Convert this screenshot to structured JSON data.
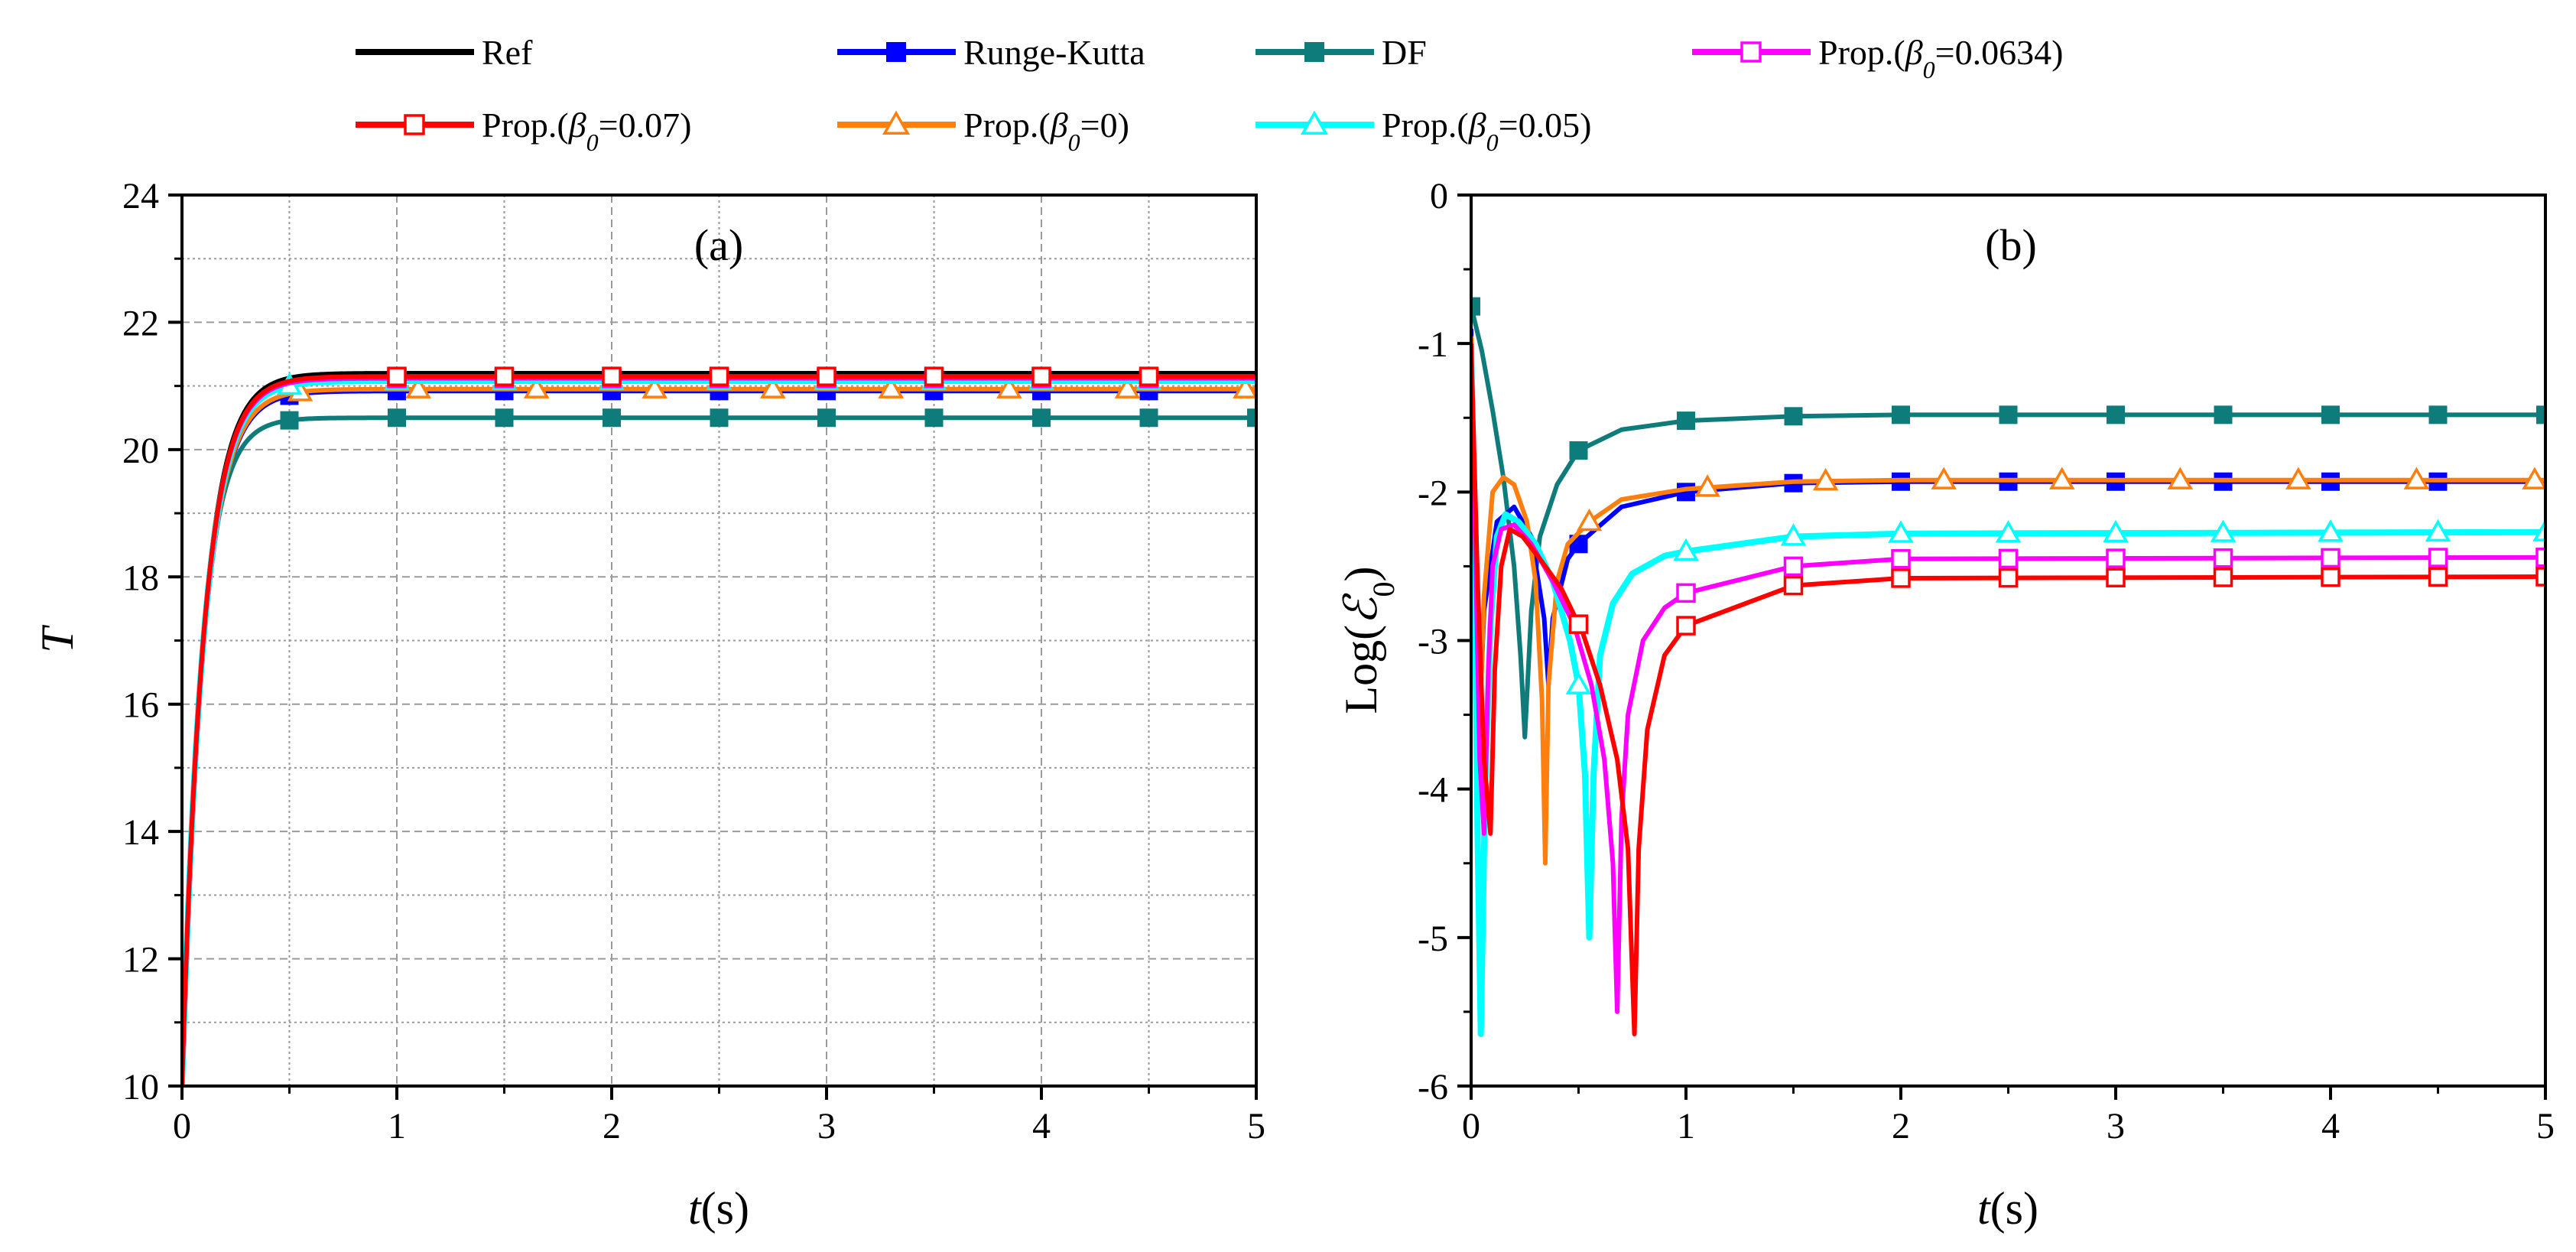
{
  "legend": [
    {
      "key": "ref",
      "label_pre": "Ref",
      "sym": "",
      "label_mid": "",
      "label_post": "",
      "color": "#000000",
      "marker": "none"
    },
    {
      "key": "rk",
      "label_pre": "Runge-Kutta",
      "sym": "",
      "label_mid": "",
      "label_post": "",
      "color": "#0000FF",
      "marker": "square-filled"
    },
    {
      "key": "df",
      "label_pre": "DF",
      "sym": "",
      "label_mid": "",
      "label_post": "",
      "color": "#0E7C7B",
      "marker": "square-filled"
    },
    {
      "key": "p0634",
      "label_pre": "Prop.(",
      "sym": "β",
      "label_mid": "0",
      "label_post": "=0.0634)",
      "color": "#FF00FF",
      "marker": "square-open"
    },
    {
      "key": "p07",
      "label_pre": "Prop.(",
      "sym": "β",
      "label_mid": "0",
      "label_post": "=0.07)",
      "color": "#FF0000",
      "marker": "square-open"
    },
    {
      "key": "p0",
      "label_pre": "Prop.(",
      "sym": "β",
      "label_mid": "0",
      "label_post": "=0)",
      "color": "#FF7F0E",
      "marker": "triangle-open"
    },
    {
      "key": "p05",
      "label_pre": "Prop.(",
      "sym": "β",
      "label_mid": "0",
      "label_post": "=0.05)",
      "color": "#00FFFF",
      "marker": "triangle-open"
    }
  ],
  "chart_data": [
    {
      "type": "line",
      "panel_label": "(a)",
      "xlabel_var": "t",
      "xlabel_unit": "(s)",
      "ylabel": "T",
      "xlim": [
        0,
        5
      ],
      "ylim": [
        10,
        24
      ],
      "xticks": [
        0,
        1,
        2,
        3,
        4,
        5
      ],
      "yticks": [
        10,
        12,
        14,
        16,
        18,
        20,
        22,
        24
      ],
      "grid": true,
      "model": "y = y_inf - (y_inf - 10) * exp(-t / tau)",
      "series": [
        {
          "key": "ref",
          "name": "Ref",
          "y_inf": 21.2,
          "tau": 0.1,
          "y0": 10,
          "markers_x": []
        },
        {
          "key": "rk",
          "name": "Runge-Kutta",
          "y_inf": 20.92,
          "tau": 0.1,
          "y0": 10,
          "markers_x": [
            0.5,
            1,
            1.5,
            2,
            2.5,
            3,
            3.5,
            4,
            4.5
          ]
        },
        {
          "key": "df",
          "name": "DF",
          "y_inf": 20.5,
          "tau": 0.09,
          "y0": 10,
          "markers_x": [
            0.5,
            1,
            1.5,
            2,
            2.5,
            3,
            3.5,
            4,
            4.5,
            5
          ]
        },
        {
          "key": "p0",
          "name": "Prop.(β0=0)",
          "y_inf": 20.95,
          "tau": 0.1,
          "y0": 10,
          "markers_x": [
            0.55,
            1.1,
            1.65,
            2.2,
            2.75,
            3.3,
            3.85,
            4.4,
            4.95
          ]
        },
        {
          "key": "p05",
          "name": "Prop.(β0=0.05)",
          "y_inf": 21.08,
          "tau": 0.1,
          "y0": 10,
          "markers_x": [
            0.5,
            1,
            1.5,
            2,
            2.5,
            3,
            3.5,
            4,
            4.5
          ]
        },
        {
          "key": "p0634",
          "name": "Prop.(β0=0.0634)",
          "y_inf": 21.12,
          "tau": 0.1,
          "y0": 10,
          "markers_x": [
            1,
            1.5,
            2,
            2.5,
            3,
            3.5,
            4,
            4.5
          ]
        },
        {
          "key": "p07",
          "name": "Prop.(β0=0.07)",
          "y_inf": 21.15,
          "tau": 0.1,
          "y0": 10,
          "markers_x": [
            1,
            1.5,
            2,
            2.5,
            3,
            3.5,
            4,
            4.5
          ]
        }
      ]
    },
    {
      "type": "line",
      "panel_label": "(b)",
      "xlabel_var": "t",
      "xlabel_unit": "(s)",
      "ylabel_pre": "Log",
      "ylabel_sym": "ℰ",
      "ylabel_sub": "0",
      "xlim": [
        0,
        5
      ],
      "ylim": [
        -6,
        0
      ],
      "xticks": [
        0,
        1,
        2,
        3,
        4,
        5
      ],
      "yticks": [
        -6,
        -5,
        -4,
        -3,
        -2,
        -1,
        0
      ],
      "grid": false,
      "series": [
        {
          "key": "df",
          "name": "DF",
          "points": [
            [
              0,
              -0.75
            ],
            [
              0.05,
              -1.05
            ],
            [
              0.1,
              -1.45
            ],
            [
              0.15,
              -1.9
            ],
            [
              0.2,
              -2.5
            ],
            [
              0.23,
              -3.1
            ],
            [
              0.25,
              -3.65
            ],
            [
              0.28,
              -2.8
            ],
            [
              0.32,
              -2.3
            ],
            [
              0.4,
              -1.95
            ],
            [
              0.5,
              -1.72
            ],
            [
              0.7,
              -1.58
            ],
            [
              1,
              -1.52
            ],
            [
              1.5,
              -1.49
            ],
            [
              2,
              -1.48
            ],
            [
              5,
              -1.48
            ]
          ],
          "markers_x": [
            0,
            0.5,
            1,
            1.5,
            2,
            2.5,
            3,
            3.5,
            4,
            4.5,
            5
          ]
        },
        {
          "key": "rk",
          "name": "Runge-Kutta",
          "points": [
            [
              0,
              -0.9
            ],
            [
              0.02,
              -2.4
            ],
            [
              0.04,
              -3.5
            ],
            [
              0.06,
              -2.8
            ],
            [
              0.12,
              -2.2
            ],
            [
              0.2,
              -2.1
            ],
            [
              0.28,
              -2.3
            ],
            [
              0.34,
              -2.85
            ],
            [
              0.36,
              -3.3
            ],
            [
              0.38,
              -2.85
            ],
            [
              0.45,
              -2.45
            ],
            [
              0.5,
              -2.35
            ],
            [
              0.7,
              -2.1
            ],
            [
              1,
              -2.0
            ],
            [
              1.5,
              -1.94
            ],
            [
              2,
              -1.93
            ],
            [
              5,
              -1.93
            ]
          ],
          "markers_x": [
            0.5,
            1,
            1.5,
            2,
            2.5,
            3,
            3.5,
            4,
            4.5
          ]
        },
        {
          "key": "p0",
          "name": "Prop.(β0=0)",
          "points": [
            [
              0,
              -0.95
            ],
            [
              0.02,
              -2.2
            ],
            [
              0.04,
              -3.6
            ],
            [
              0.06,
              -2.7
            ],
            [
              0.1,
              -2.0
            ],
            [
              0.15,
              -1.9
            ],
            [
              0.2,
              -1.95
            ],
            [
              0.26,
              -2.2
            ],
            [
              0.3,
              -2.6
            ],
            [
              0.33,
              -3.4
            ],
            [
              0.345,
              -4.5
            ],
            [
              0.36,
              -3.3
            ],
            [
              0.4,
              -2.6
            ],
            [
              0.45,
              -2.35
            ],
            [
              0.55,
              -2.2
            ],
            [
              0.7,
              -2.05
            ],
            [
              1,
              -1.98
            ],
            [
              1.5,
              -1.93
            ],
            [
              2,
              -1.92
            ],
            [
              5,
              -1.92
            ]
          ],
          "markers_x": [
            0.55,
            1.1,
            1.65,
            2.2,
            2.75,
            3.3,
            3.85,
            4.4,
            4.95
          ]
        },
        {
          "key": "p05",
          "name": "Prop.(β0=0.05)",
          "points": [
            [
              0,
              -1.0
            ],
            [
              0.015,
              -2.4
            ],
            [
              0.03,
              -4.3
            ],
            [
              0.045,
              -5.65
            ],
            [
              0.065,
              -4.0
            ],
            [
              0.09,
              -2.9
            ],
            [
              0.12,
              -2.3
            ],
            [
              0.16,
              -2.15
            ],
            [
              0.22,
              -2.2
            ],
            [
              0.3,
              -2.35
            ],
            [
              0.38,
              -2.6
            ],
            [
              0.46,
              -3.0
            ],
            [
              0.5,
              -3.3
            ],
            [
              0.53,
              -3.9
            ],
            [
              0.55,
              -5.0
            ],
            [
              0.57,
              -3.9
            ],
            [
              0.6,
              -3.1
            ],
            [
              0.66,
              -2.75
            ],
            [
              0.75,
              -2.55
            ],
            [
              0.9,
              -2.43
            ],
            [
              1,
              -2.4
            ],
            [
              1.5,
              -2.3
            ],
            [
              2,
              -2.28
            ],
            [
              5,
              -2.27
            ]
          ],
          "markers_x": [
            0.5,
            1,
            1.5,
            2,
            2.5,
            3,
            3.5,
            4,
            4.5,
            5
          ]
        },
        {
          "key": "p0634",
          "name": "Prop.(β0=0.0634)",
          "points": [
            [
              0,
              -1.0
            ],
            [
              0.02,
              -2.4
            ],
            [
              0.04,
              -3.8
            ],
            [
              0.06,
              -4.3
            ],
            [
              0.08,
              -3.2
            ],
            [
              0.1,
              -2.5
            ],
            [
              0.14,
              -2.25
            ],
            [
              0.2,
              -2.22
            ],
            [
              0.28,
              -2.35
            ],
            [
              0.38,
              -2.6
            ],
            [
              0.48,
              -2.9
            ],
            [
              0.56,
              -3.3
            ],
            [
              0.62,
              -3.8
            ],
            [
              0.66,
              -4.5
            ],
            [
              0.68,
              -5.5
            ],
            [
              0.7,
              -4.2
            ],
            [
              0.73,
              -3.5
            ],
            [
              0.8,
              -3.0
            ],
            [
              0.9,
              -2.78
            ],
            [
              1,
              -2.68
            ],
            [
              1.5,
              -2.5
            ],
            [
              2,
              -2.45
            ],
            [
              5,
              -2.44
            ]
          ],
          "markers_x": [
            1,
            1.5,
            2,
            2.5,
            3,
            3.5,
            4,
            4.5,
            5
          ]
        },
        {
          "key": "p07",
          "name": "Prop.(β0=0.07)",
          "points": [
            [
              0,
              -1.0
            ],
            [
              0.03,
              -2.6
            ],
            [
              0.06,
              -3.8
            ],
            [
              0.09,
              -4.3
            ],
            [
              0.11,
              -3.2
            ],
            [
              0.14,
              -2.5
            ],
            [
              0.18,
              -2.25
            ],
            [
              0.24,
              -2.3
            ],
            [
              0.32,
              -2.45
            ],
            [
              0.42,
              -2.65
            ],
            [
              0.52,
              -2.95
            ],
            [
              0.6,
              -3.3
            ],
            [
              0.68,
              -3.8
            ],
            [
              0.73,
              -4.4
            ],
            [
              0.76,
              -5.65
            ],
            [
              0.78,
              -4.4
            ],
            [
              0.82,
              -3.6
            ],
            [
              0.9,
              -3.1
            ],
            [
              1,
              -2.9
            ],
            [
              1.5,
              -2.63
            ],
            [
              2,
              -2.58
            ],
            [
              5,
              -2.57
            ]
          ],
          "markers_x": [
            0.5,
            1,
            1.5,
            2,
            2.5,
            3,
            3.5,
            4,
            4.5,
            5
          ]
        }
      ]
    }
  ]
}
